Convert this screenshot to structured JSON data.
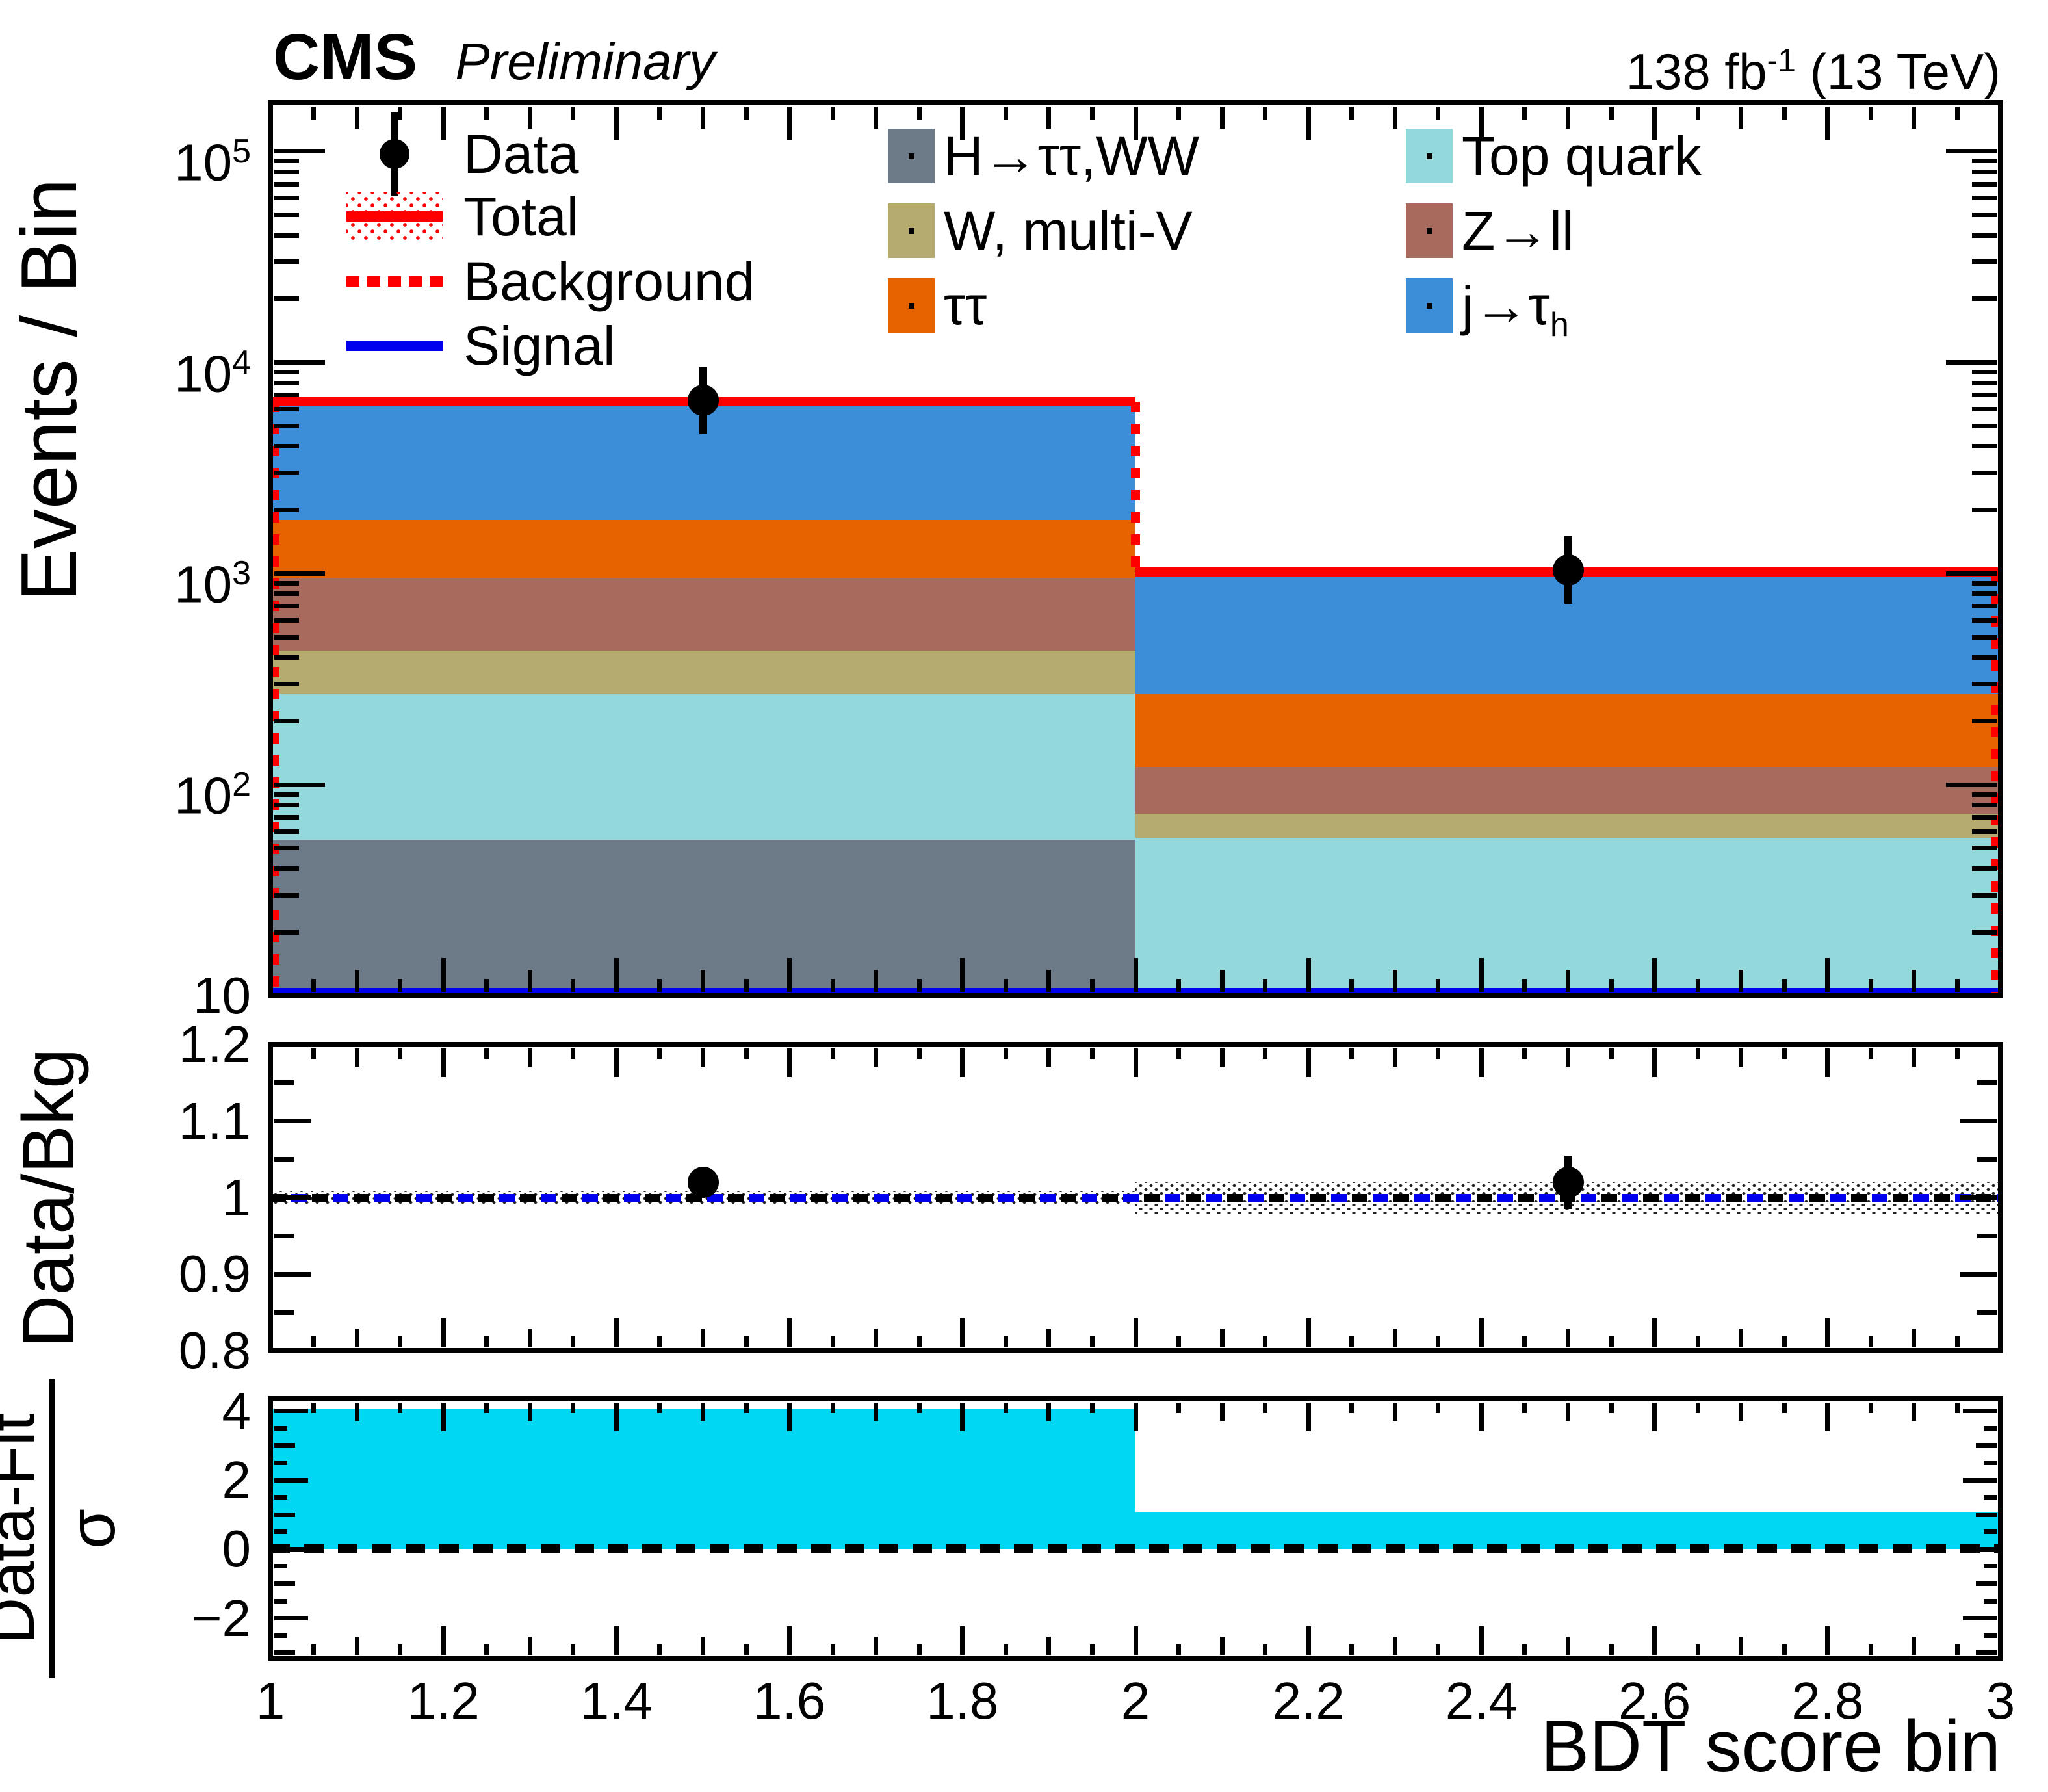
{
  "header": {
    "experiment": "CMS",
    "status": "Preliminary",
    "lumi_prefix": "138 fb",
    "lumi_sup": "-1",
    "lumi_suffix": " (13 TeV)"
  },
  "legend": {
    "style_entries": [
      {
        "label": "Data",
        "marker": "data"
      },
      {
        "label": "Total",
        "marker": "total"
      },
      {
        "label": "Background",
        "marker": "background"
      },
      {
        "label": "Signal",
        "marker": "signal"
      }
    ],
    "process_columns": [
      [
        {
          "label": "H→ττ,WW",
          "color": "#6d7a87"
        },
        {
          "label": "W, multi-V",
          "color": "#b6ab6e"
        },
        {
          "label": "ττ",
          "color": "#e66300"
        }
      ],
      [
        {
          "label": "Top quark",
          "color": "#93d9dc"
        },
        {
          "label": "Z→ll",
          "color": "#a96a5e"
        },
        {
          "label": "j→τ",
          "sub": "h",
          "color": "#3d8ed8"
        }
      ]
    ]
  },
  "chart_data": {
    "type": "stacked-bar-histogram-with-ratio-and-pull",
    "x_title": "BDT score bin",
    "bin_edges": [
      1,
      2,
      3
    ],
    "bin_centers": [
      1.5,
      2.5
    ],
    "x_tick_values": [
      1,
      1.2,
      1.4,
      1.6,
      1.8,
      2,
      2.2,
      2.4,
      2.6,
      2.8,
      3
    ],
    "x_tick_labels": [
      "1",
      "1.2",
      "1.4",
      "1.6",
      "1.8",
      "2",
      "2.2",
      "2.4",
      "2.6",
      "2.8",
      "3"
    ],
    "main_panel": {
      "y_title": "Events / Bin",
      "y_scale": "log",
      "y_min": 10,
      "y_max": 170000,
      "y_tick_decades": [
        1,
        2,
        3,
        4,
        5
      ],
      "y_tick_labels": [
        {
          "base": "10",
          "exp": ""
        },
        {
          "base": "10",
          "exp": "2"
        },
        {
          "base": "10",
          "exp": "3"
        },
        {
          "base": "10",
          "exp": "4"
        },
        {
          "base": "10",
          "exp": "5"
        }
      ],
      "stack": [
        {
          "label": "H→ττ,WW",
          "color": "#6d7a87",
          "cum_top": [
            55,
            10
          ],
          "values": [
            45,
            0
          ]
        },
        {
          "label": "Top quark",
          "color": "#93d9dc",
          "cum_top": [
            270,
            56
          ],
          "values": [
            215,
            46
          ]
        },
        {
          "label": "W, multi-V",
          "color": "#b6ab6e",
          "cum_top": [
            430,
            73
          ],
          "values": [
            160,
            17
          ]
        },
        {
          "label": "Z→ll",
          "color": "#a96a5e",
          "cum_top": [
            950,
            121
          ],
          "values": [
            520,
            48
          ]
        },
        {
          "label": "ττ",
          "color": "#e66300",
          "cum_top": [
            1800,
            270
          ],
          "values": [
            850,
            149
          ]
        },
        {
          "label": "j→τ",
          "sub": "h",
          "color": "#3d8ed8",
          "cum_top": [
            6500,
            1020
          ],
          "values": [
            4700,
            750
          ]
        }
      ],
      "total": {
        "label": "Total",
        "color": "#ff0000",
        "values": [
          6500,
          1020
        ]
      },
      "background": {
        "label": "Background",
        "color": "#ff0000",
        "values": [
          6500,
          1020
        ]
      },
      "signal": {
        "label": "Signal",
        "color": "#0000ee",
        "values": [
          10.4,
          10.4
        ]
      },
      "data": {
        "label": "Data",
        "color": "#000000",
        "x": [
          1.5,
          2.5
        ],
        "y": [
          6600,
          1040
        ]
      }
    },
    "ratio_panel": {
      "y_title": "Data/Bkg",
      "y_min": 0.8,
      "y_max": 1.2,
      "y_tick_values": [
        0.8,
        0.9,
        1,
        1.1,
        1.2
      ],
      "y_tick_labels": [
        "0.8",
        "0.9",
        "1",
        "1.1",
        "1.2"
      ],
      "reference_y": 1,
      "unc_band_halfwidth": [
        0.009,
        0.021
      ],
      "points": {
        "x": [
          1.5,
          2.5
        ],
        "y": [
          1.02,
          1.02
        ],
        "yerr": [
          0.013,
          0.035
        ]
      }
    },
    "pull_panel": {
      "y_title_num": "Data-Fit",
      "y_title_den": "σ",
      "y_min": -3.17,
      "y_max": 4.35,
      "y_tick_values": [
        4,
        2,
        0,
        -2
      ],
      "y_tick_labels": [
        "4",
        "2",
        "0",
        "−2"
      ],
      "reference_y": 0,
      "bars": [
        4.05,
        1.08
      ],
      "bar_color": "#00d7f2"
    }
  },
  "colors": {
    "frame": "#000000",
    "total_line": "#ff0000",
    "background_line": "#ff0000",
    "signal_line": "#0000ee",
    "data_marker": "#000000",
    "pull_bar": "#00d7f2"
  }
}
